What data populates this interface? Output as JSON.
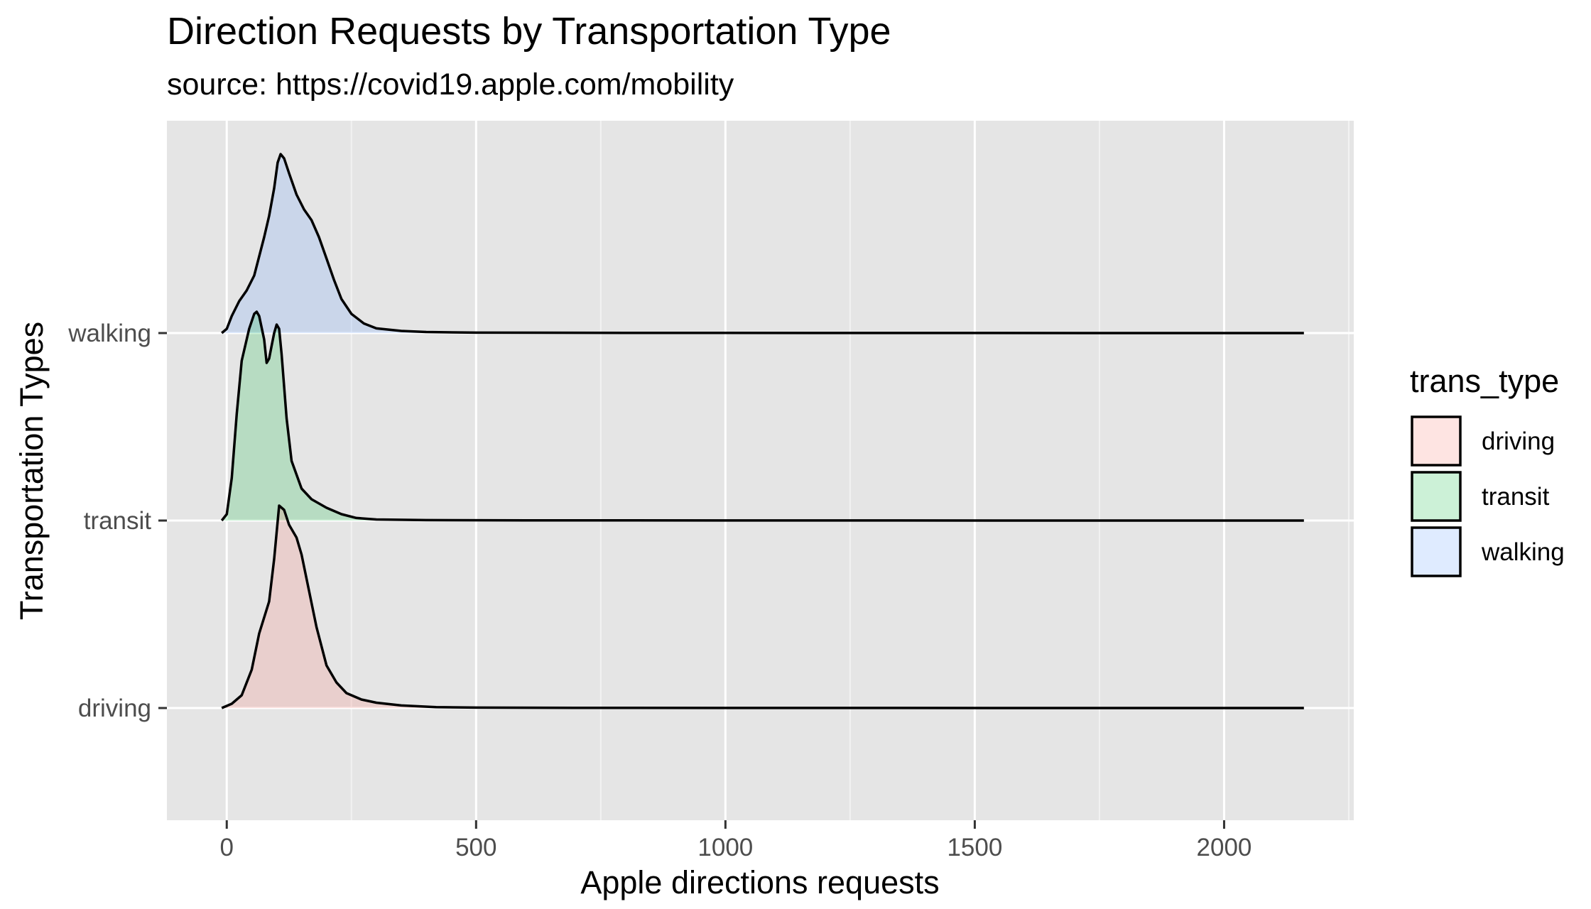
{
  "chart_data": {
    "type": "ridgeline",
    "title": "Direction Requests by Transportation Type",
    "subtitle": "source: https://covid19.apple.com/mobility",
    "xlabel": "Apple directions requests",
    "ylabel": "Transportation Types",
    "xlim": [
      -120,
      2260
    ],
    "x_ticks": [
      0,
      500,
      1000,
      1500,
      2000
    ],
    "x_tick_labels": [
      "0",
      "500",
      "1000",
      "1500",
      "2000"
    ],
    "x_minor_ticks": [
      250,
      750,
      1250,
      1750,
      2250
    ],
    "grid": true,
    "legend": {
      "title": "trans_type",
      "position": "right",
      "entries": [
        "driving",
        "transit",
        "walking"
      ]
    },
    "categories": [
      "driving",
      "transit",
      "walking"
    ],
    "series": [
      {
        "name": "driving",
        "color": "#f8766d",
        "points": [
          [
            -10,
            0
          ],
          [
            10,
            0.02
          ],
          [
            30,
            0.06
          ],
          [
            50,
            0.18
          ],
          [
            65,
            0.35
          ],
          [
            85,
            0.5
          ],
          [
            95,
            0.7
          ],
          [
            105,
            0.95
          ],
          [
            115,
            0.93
          ],
          [
            125,
            0.86
          ],
          [
            140,
            0.8
          ],
          [
            150,
            0.72
          ],
          [
            165,
            0.55
          ],
          [
            180,
            0.38
          ],
          [
            200,
            0.2
          ],
          [
            220,
            0.12
          ],
          [
            240,
            0.07
          ],
          [
            270,
            0.04
          ],
          [
            300,
            0.025
          ],
          [
            350,
            0.012
          ],
          [
            420,
            0.004
          ],
          [
            500,
            0.002
          ],
          [
            700,
            0.001
          ],
          [
            1000,
            0.0004
          ],
          [
            2160,
            0
          ]
        ]
      },
      {
        "name": "transit",
        "color": "#00ba38",
        "points": [
          [
            -10,
            0
          ],
          [
            0,
            0.03
          ],
          [
            10,
            0.2
          ],
          [
            20,
            0.5
          ],
          [
            30,
            0.75
          ],
          [
            45,
            0.9
          ],
          [
            55,
            0.97
          ],
          [
            60,
            0.98
          ],
          [
            65,
            0.96
          ],
          [
            75,
            0.85
          ],
          [
            80,
            0.74
          ],
          [
            85,
            0.76
          ],
          [
            90,
            0.82
          ],
          [
            95,
            0.88
          ],
          [
            100,
            0.92
          ],
          [
            105,
            0.9
          ],
          [
            110,
            0.78
          ],
          [
            120,
            0.48
          ],
          [
            130,
            0.28
          ],
          [
            150,
            0.15
          ],
          [
            170,
            0.1
          ],
          [
            200,
            0.06
          ],
          [
            230,
            0.03
          ],
          [
            260,
            0.012
          ],
          [
            300,
            0.005
          ],
          [
            400,
            0.002
          ],
          [
            600,
            0.001
          ],
          [
            1000,
            0.0005
          ],
          [
            2160,
            0
          ]
        ]
      },
      {
        "name": "walking",
        "color": "#619cff",
        "points": [
          [
            -10,
            0
          ],
          [
            0,
            0.02
          ],
          [
            10,
            0.08
          ],
          [
            25,
            0.15
          ],
          [
            40,
            0.2
          ],
          [
            55,
            0.27
          ],
          [
            65,
            0.36
          ],
          [
            75,
            0.45
          ],
          [
            85,
            0.55
          ],
          [
            95,
            0.68
          ],
          [
            102,
            0.8
          ],
          [
            108,
            0.84
          ],
          [
            115,
            0.82
          ],
          [
            125,
            0.75
          ],
          [
            140,
            0.65
          ],
          [
            155,
            0.58
          ],
          [
            170,
            0.53
          ],
          [
            185,
            0.45
          ],
          [
            200,
            0.35
          ],
          [
            215,
            0.25
          ],
          [
            230,
            0.16
          ],
          [
            250,
            0.09
          ],
          [
            275,
            0.045
          ],
          [
            300,
            0.022
          ],
          [
            350,
            0.01
          ],
          [
            400,
            0.005
          ],
          [
            500,
            0.002
          ],
          [
            800,
            0.001
          ],
          [
            1200,
            0.0005
          ],
          [
            2160,
            0
          ]
        ]
      }
    ]
  }
}
